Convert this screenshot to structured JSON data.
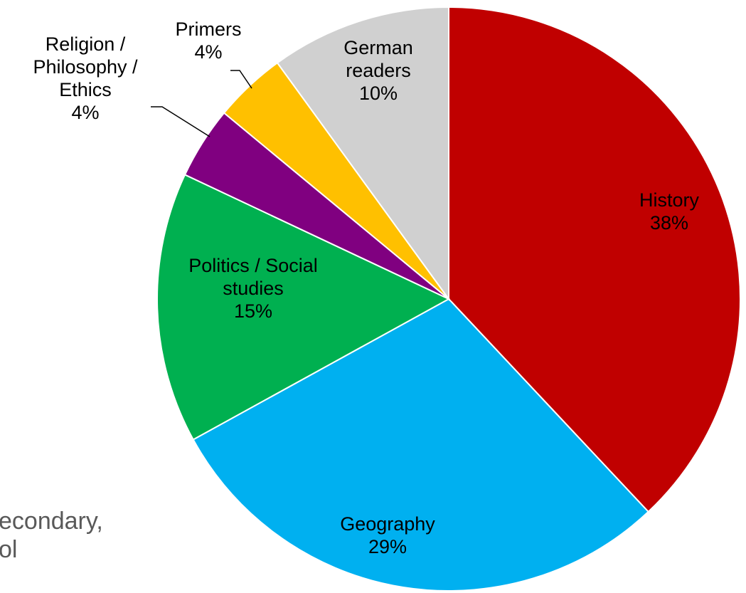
{
  "background_text": {
    "line1": "econdary,",
    "line2": "ol"
  },
  "chart_data": {
    "type": "pie",
    "title": "",
    "start_angle_deg": 0,
    "direction": "clockwise",
    "slices": [
      {
        "name": "History",
        "value": 38,
        "label_lines": [
          "History",
          "38%"
        ],
        "color": "#C00000"
      },
      {
        "name": "Geography",
        "value": 29,
        "label_lines": [
          "Geography",
          "29%"
        ],
        "color": "#00B0F0"
      },
      {
        "name": "Politics / Social studies",
        "value": 15,
        "label_lines": [
          "Politics / Social",
          "studies",
          "15%"
        ],
        "color": "#00B050"
      },
      {
        "name": "Religion / Philosophy / Ethics",
        "value": 4,
        "label_lines": [
          "Religion /",
          "Philosophy /",
          "Ethics",
          "4%"
        ],
        "color": "#800080"
      },
      {
        "name": "Primers",
        "value": 4,
        "label_lines": [
          "Primers",
          "4%"
        ],
        "color": "#FFC000"
      },
      {
        "name": "German readers",
        "value": 10,
        "label_lines": [
          "German",
          "readers",
          "10%"
        ],
        "color": "#D0D0D0"
      }
    ]
  }
}
